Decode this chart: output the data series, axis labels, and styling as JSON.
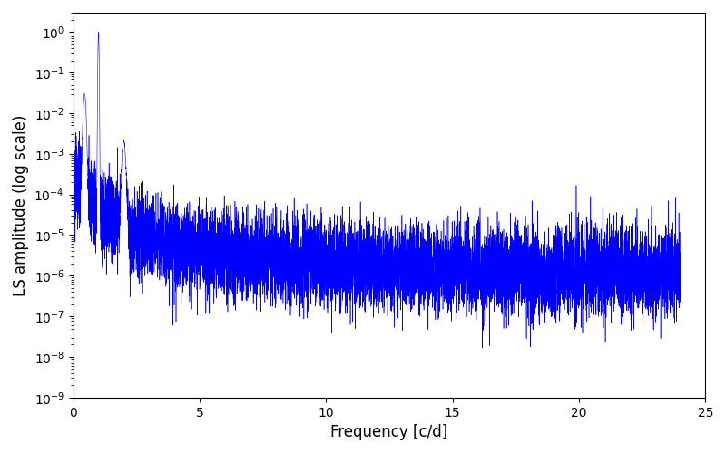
{
  "xlabel": "Frequency [c/d]",
  "ylabel": "LS amplitude (log scale)",
  "line_color": "#0000ff",
  "xlim": [
    0,
    25
  ],
  "ylim": [
    1e-09,
    3.0
  ],
  "background_color": "#ffffff",
  "figsize": [
    8.0,
    5.0
  ],
  "dpi": 100,
  "freq_max": 24.0,
  "n_points": 10000,
  "peak_freq": 1.0,
  "peak_amplitude": 1.0,
  "noise_floor_base": 1e-06,
  "decay_power": 1.8,
  "log_noise_sigma": 1.2,
  "linewidth": 0.4,
  "xlabel_fontsize": 12,
  "ylabel_fontsize": 12
}
